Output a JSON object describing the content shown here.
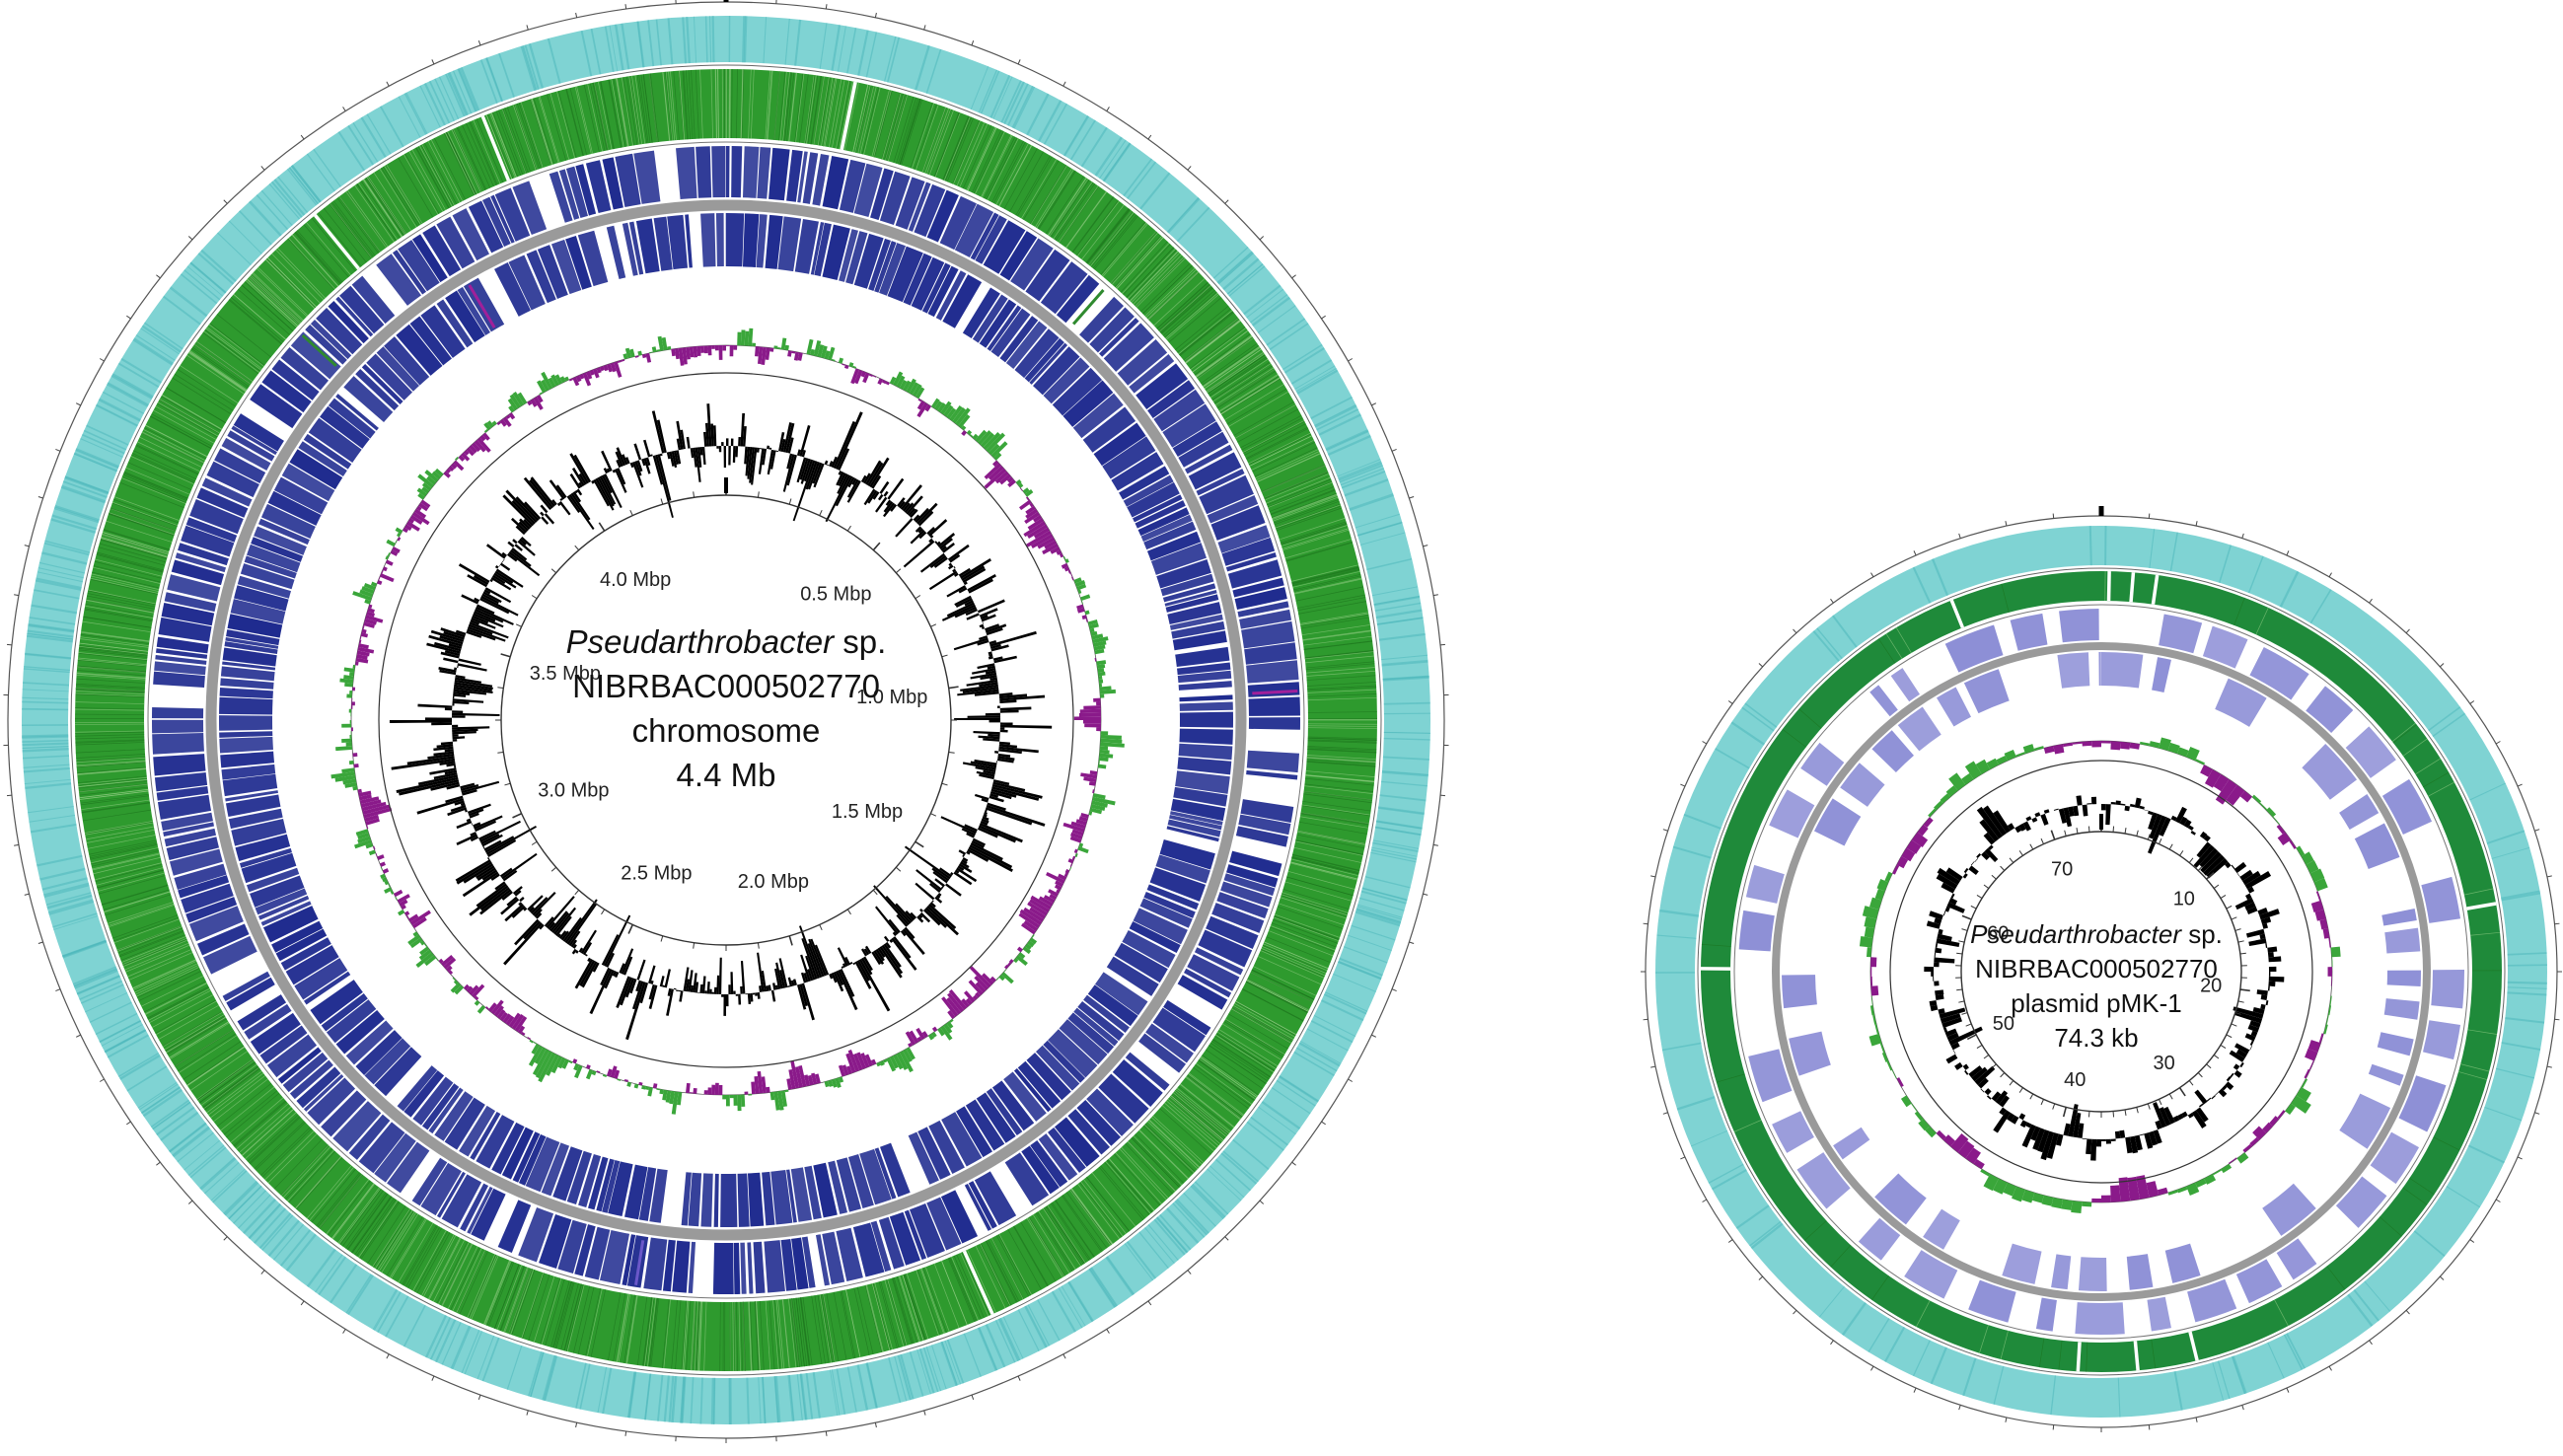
{
  "chromosome": {
    "species_italic": "Pseudarthrobacter",
    "species_suffix": " sp.",
    "strain": "NIBRBAC000502770",
    "type": "chromosome",
    "size": "4.4 Mb",
    "total_mbp": 4.4,
    "tick_labels": [
      {
        "text": "0.5 Mbp",
        "value": 0.5
      },
      {
        "text": "1.0 Mbp",
        "value": 1.0
      },
      {
        "text": "1.5 Mbp",
        "value": 1.5
      },
      {
        "text": "2.0 Mbp",
        "value": 2.0
      },
      {
        "text": "2.5 Mbp",
        "value": 2.5
      },
      {
        "text": "3.0 Mbp",
        "value": 3.0
      },
      {
        "text": "3.5 Mbp",
        "value": 3.5
      },
      {
        "text": "4.0 Mbp",
        "value": 4.0
      }
    ]
  },
  "plasmid": {
    "species_italic": "Pseudarthrobacter",
    "species_suffix": " sp.",
    "strain": "NIBRBAC000502770",
    "type": "plasmid pMK-1",
    "size": "74.3 kb",
    "total_kb": 74.3,
    "tick_labels": [
      {
        "text": "10",
        "value": 10
      },
      {
        "text": "20",
        "value": 20
      },
      {
        "text": "30",
        "value": 30
      },
      {
        "text": "40",
        "value": 40
      },
      {
        "text": "50",
        "value": 50
      },
      {
        "text": "60",
        "value": 60
      },
      {
        "text": "70",
        "value": 70
      }
    ]
  },
  "colors": {
    "cog_ring": "#7fd3d3",
    "cog_ring_dark": "#4fb8bc",
    "rna_ring_chromosome": "#2e9a2e",
    "rna_ring_plasmid": "#1f8a3a",
    "cds_chromosome": "#1f2b8f",
    "cds_plasmid": "#8d8fd6",
    "backbone": "#9a9a9a",
    "gc_skew_positive": "#3aa63a",
    "gc_skew_negative": "#8a1a8a",
    "gc_content": "#000000"
  }
}
